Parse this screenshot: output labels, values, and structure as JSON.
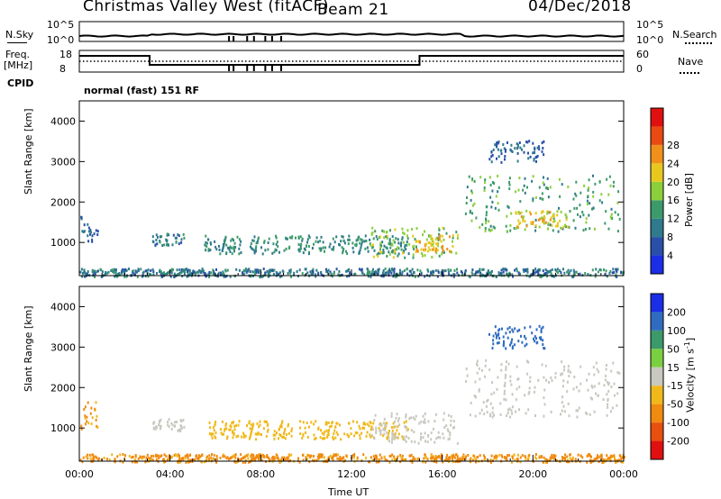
{
  "header": {
    "station": "Christmas Valley West (fitACF)",
    "beam": "Beam 21",
    "date": "04/Dec/2018"
  },
  "top_panels": {
    "nsky_label": "N.Sky",
    "nsearch_label": "N.Search",
    "noise_left_ticks": [
      "10^5",
      "10^0"
    ],
    "noise_right_ticks": [
      "10^5",
      "10^0"
    ],
    "freq_label": "Freq.",
    "freq_unit": "[MHz]",
    "freq_ticks": [
      "18",
      "8"
    ],
    "nave_label": "Nave",
    "nave_ticks": [
      "60",
      "0"
    ],
    "cpid_label": "CPID",
    "cpid_value": "normal (fast) 151 RF"
  },
  "chart_data": [
    {
      "type": "heatmap",
      "name": "power",
      "ylabel": "Slant Range [km]",
      "xlabel": "",
      "yticks": [
        "1000",
        "2000",
        "3000",
        "4000"
      ],
      "ylim": [
        180,
        4500
      ],
      "xlim": [
        0,
        24
      ],
      "colorbar_label": "Power [dB]",
      "colorbar_ticks": [
        "4",
        "8",
        "12",
        "16",
        "20",
        "24",
        "28"
      ],
      "colorbar_colors": [
        "#1a2ee6",
        "#2a4fa8",
        "#2f7a8c",
        "#3c9a6a",
        "#8ccf3a",
        "#e8c81e",
        "#f0901a",
        "#e84a12",
        "#e01010"
      ],
      "echo_regions": [
        {
          "t_start": 0.0,
          "t_end": 0.8,
          "r_start": 1000,
          "r_end": 1700,
          "level": 8
        },
        {
          "t_start": 3.2,
          "t_end": 4.6,
          "r_start": 950,
          "r_end": 1250,
          "level": 10
        },
        {
          "t_start": 5.5,
          "t_end": 14.5,
          "r_start": 750,
          "r_end": 1200,
          "level": 12
        },
        {
          "t_start": 12.8,
          "t_end": 16.7,
          "r_start": 650,
          "r_end": 1400,
          "level": 18
        },
        {
          "t_start": 14.8,
          "t_end": 16.3,
          "r_start": 800,
          "r_end": 1200,
          "level": 24
        },
        {
          "t_start": 17.0,
          "t_end": 23.8,
          "r_start": 1300,
          "r_end": 2700,
          "level": 14
        },
        {
          "t_start": 19.2,
          "t_end": 21.5,
          "r_start": 1350,
          "r_end": 1800,
          "level": 22
        },
        {
          "t_start": 18.0,
          "t_end": 20.5,
          "r_start": 3000,
          "r_end": 3550,
          "level": 8
        },
        {
          "t_start": 0.0,
          "t_end": 24.0,
          "r_start": 180,
          "r_end": 380,
          "level": 10
        }
      ]
    },
    {
      "type": "heatmap",
      "name": "velocity",
      "ylabel": "Slant Range [km]",
      "xlabel": "Time UT",
      "yticks": [
        "1000",
        "2000",
        "3000",
        "4000"
      ],
      "xticks": [
        "00:00",
        "04:00",
        "08:00",
        "12:00",
        "16:00",
        "20:00",
        "00:00"
      ],
      "ylim": [
        180,
        4500
      ],
      "xlim": [
        0,
        24
      ],
      "colorbar_label": "Velocity [m s-1]",
      "colorbar_unit_display": "Velocity [m s",
      "colorbar_unit_exponent": "-1",
      "colorbar_unit_close": "]",
      "colorbar_ticks": [
        "200",
        "100",
        "50",
        "15",
        "-15",
        "-50",
        "-100",
        "-200"
      ],
      "colorbar_colors": [
        "#1a2ee6",
        "#2f6cc0",
        "#3c9a6a",
        "#7ad040",
        "#c8c8c0",
        "#f0b81a",
        "#f08a10",
        "#e85010",
        "#e01010"
      ],
      "echo_regions": [
        {
          "t_start": 0.0,
          "t_end": 0.8,
          "r_start": 1000,
          "r_end": 1700,
          "velocity": -50
        },
        {
          "t_start": 3.2,
          "t_end": 4.6,
          "r_start": 950,
          "r_end": 1250,
          "velocity": 0
        },
        {
          "t_start": 5.5,
          "t_end": 14.5,
          "r_start": 750,
          "r_end": 1200,
          "velocity": -30
        },
        {
          "t_start": 12.8,
          "t_end": 16.7,
          "r_start": 650,
          "r_end": 1400,
          "velocity": 0
        },
        {
          "t_start": 17.0,
          "t_end": 23.8,
          "r_start": 1300,
          "r_end": 2700,
          "velocity": 0
        },
        {
          "t_start": 18.0,
          "t_end": 20.5,
          "r_start": 3000,
          "r_end": 3550,
          "velocity": 150
        },
        {
          "t_start": 0.0,
          "t_end": 24.0,
          "r_start": 180,
          "r_end": 380,
          "velocity": -60
        }
      ]
    }
  ]
}
